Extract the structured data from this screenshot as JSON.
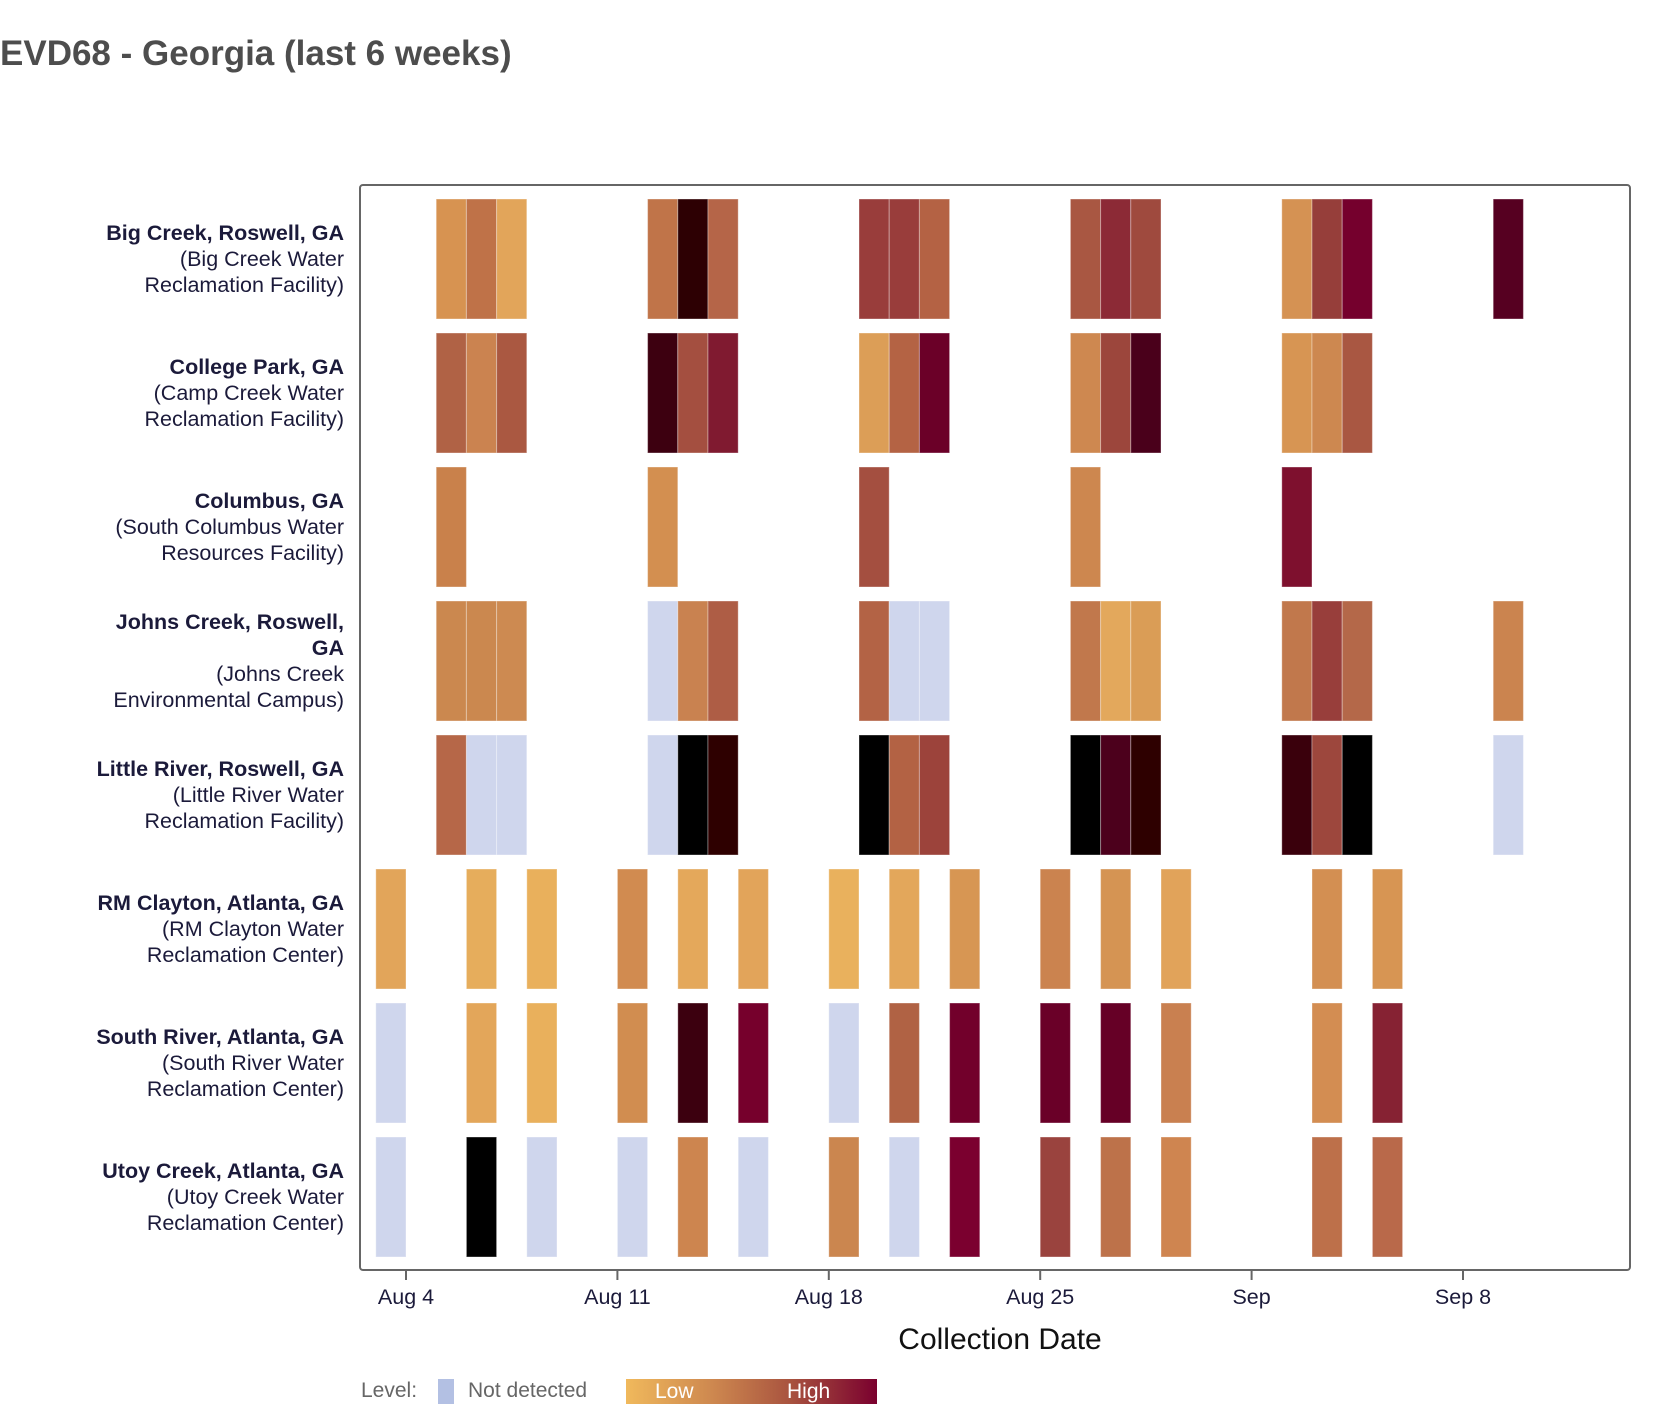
{
  "title": "EVD68 - Georgia (last 6 weeks)",
  "chart_data": {
    "type": "heatmap",
    "title": "EVD68 - Georgia (last 6 weeks)",
    "xlabel": "Collection Date",
    "ylabel": "",
    "xlim": [
      "Aug 2",
      "Sep 13"
    ],
    "x_ticks": [
      {
        "label": "Aug 4",
        "date": "Aug 4"
      },
      {
        "label": "Aug 11",
        "date": "Aug 11"
      },
      {
        "label": "Aug 18",
        "date": "Aug 18"
      },
      {
        "label": "Aug 25",
        "date": "Aug 25"
      },
      {
        "label": "Sep",
        "date": "Sep 1"
      },
      {
        "label": "Sep 8",
        "date": "Sep 8"
      }
    ],
    "legend": {
      "position": "bottom",
      "title": "Level:",
      "not_detected_label": "Not detected",
      "not_detected_color": "#b3c0e3",
      "low_label": "Low",
      "high_label": "High",
      "gradient": [
        "#f0b95c",
        "#7a002e"
      ]
    },
    "not_detected_fill": "#cfd6ed",
    "sites": [
      {
        "name": "Big Creek, Roswell, GA",
        "facility": [
          "(Big Creek Water",
          "Reclamation Facility)"
        ],
        "samples": [
          [
            "Aug 5",
            "#d79351"
          ],
          [
            "Aug 6",
            "#bf7248"
          ],
          [
            "Aug 7",
            "#e2a55a"
          ],
          [
            "Aug 12",
            "#c07449"
          ],
          [
            "Aug 13",
            "#2d0003"
          ],
          [
            "Aug 14",
            "#b56548"
          ],
          [
            "Aug 19",
            "#993d3b"
          ],
          [
            "Aug 20",
            "#993d3b"
          ],
          [
            "Aug 21",
            "#b46244"
          ],
          [
            "Aug 26",
            "#a95742"
          ],
          [
            "Aug 27",
            "#8c2a36"
          ],
          [
            "Aug 28",
            "#9f4a3e"
          ],
          [
            "Sep 2",
            "#d59253"
          ],
          [
            "Sep 3",
            "#963e3a"
          ],
          [
            "Sep 4",
            "#75002d"
          ],
          [
            "Sep 9",
            "#560021"
          ]
        ]
      },
      {
        "name": "College Park, GA",
        "facility": [
          "(Camp Creek Water",
          "Reclamation Facility)"
        ],
        "samples": [
          [
            "Aug 5",
            "#b06245"
          ],
          [
            "Aug 6",
            "#cb8350"
          ],
          [
            "Aug 7",
            "#aa5841"
          ],
          [
            "Aug 12",
            "#3d0010"
          ],
          [
            "Aug 13",
            "#a44f40"
          ],
          [
            "Aug 14",
            "#801a30"
          ],
          [
            "Aug 19",
            "#dc9e57"
          ],
          [
            "Aug 20",
            "#b46344"
          ],
          [
            "Aug 21",
            "#6b0028"
          ],
          [
            "Aug 26",
            "#ce8850"
          ],
          [
            "Aug 27",
            "#9c463c"
          ],
          [
            "Aug 28",
            "#4a001b"
          ],
          [
            "Sep 2",
            "#d79553"
          ],
          [
            "Sep 3",
            "#cd8850"
          ],
          [
            "Sep 4",
            "#a95742"
          ]
        ]
      },
      {
        "name": "Columbus, GA",
        "facility": [
          "(South Columbus Water",
          "Resources Facility)"
        ],
        "samples": [
          [
            "Aug 5",
            "#c9814b"
          ],
          [
            "Aug 12",
            "#d38f50"
          ],
          [
            "Aug 19",
            "#a44f40"
          ],
          [
            "Aug 26",
            "#cd874f"
          ],
          [
            "Sep 2",
            "#7e102e"
          ]
        ]
      },
      {
        "name": "Johns Creek, Roswell, GA",
        "name_lines": [
          "Johns Creek, Roswell,",
          "GA"
        ],
        "facility": [
          "(Johns Creek",
          "Environmental Campus)"
        ],
        "samples": [
          [
            "Aug 5",
            "#cb884f"
          ],
          [
            "Aug 6",
            "#cb884f"
          ],
          [
            "Aug 7",
            "#cd8a51"
          ],
          [
            "Aug 12",
            "ND"
          ],
          [
            "Aug 13",
            "#c98250"
          ],
          [
            "Aug 14",
            "#ae5d45"
          ],
          [
            "Aug 19",
            "#b36345"
          ],
          [
            "Aug 20",
            "ND"
          ],
          [
            "Aug 21",
            "ND"
          ],
          [
            "Aug 26",
            "#c1784c"
          ],
          [
            "Aug 27",
            "#e3a85c"
          ],
          [
            "Aug 28",
            "#da9d56"
          ],
          [
            "Sep 2",
            "#c1784c"
          ],
          [
            "Sep 3",
            "#983e3b"
          ],
          [
            "Sep 4",
            "#b46849"
          ],
          [
            "Sep 9",
            "#cb844f"
          ]
        ]
      },
      {
        "name": "Little River, Roswell, GA",
        "facility": [
          "(Little River Water",
          "Reclamation Facility)"
        ],
        "samples": [
          [
            "Aug 5",
            "#b66748"
          ],
          [
            "Aug 6",
            "ND"
          ],
          [
            "Aug 7",
            "ND"
          ],
          [
            "Aug 12",
            "ND"
          ],
          [
            "Aug 13",
            "#000000"
          ],
          [
            "Aug 14",
            "#2e0000"
          ],
          [
            "Aug 19",
            "#000000"
          ],
          [
            "Aug 20",
            "#b36244"
          ],
          [
            "Aug 21",
            "#9c433b"
          ],
          [
            "Aug 26",
            "#000000"
          ],
          [
            "Aug 27",
            "#4c001c"
          ],
          [
            "Aug 28",
            "#2e0000"
          ],
          [
            "Sep 2",
            "#3a000c"
          ],
          [
            "Sep 3",
            "#9d473d"
          ],
          [
            "Sep 4",
            "#000000"
          ],
          [
            "Sep 9",
            "ND"
          ]
        ]
      },
      {
        "name": "RM Clayton, Atlanta, GA",
        "facility": [
          "(RM Clayton Water",
          "Reclamation Center)"
        ],
        "samples": [
          [
            "Aug 3",
            "#e2a55a"
          ],
          [
            "Aug 6",
            "#e6ad5c"
          ],
          [
            "Aug 8",
            "#e9b05c"
          ],
          [
            "Aug 11",
            "#d18b50"
          ],
          [
            "Aug 13",
            "#e4a85b"
          ],
          [
            "Aug 15",
            "#e2a45a"
          ],
          [
            "Aug 18",
            "#e9b15d"
          ],
          [
            "Aug 20",
            "#e3a75b"
          ],
          [
            "Aug 22",
            "#d79653"
          ],
          [
            "Aug 25",
            "#cb834f"
          ],
          [
            "Aug 27",
            "#d59453"
          ],
          [
            "Aug 29",
            "#e1a35a"
          ],
          [
            "Sep 3",
            "#d38f52"
          ],
          [
            "Sep 5",
            "#d79553"
          ]
        ]
      },
      {
        "name": "South River, Atlanta, GA",
        "facility": [
          "(South River Water",
          "Reclamation Center)"
        ],
        "samples": [
          [
            "Aug 3",
            "ND"
          ],
          [
            "Aug 6",
            "#e3a65a"
          ],
          [
            "Aug 8",
            "#e9b05c"
          ],
          [
            "Aug 11",
            "#d18d50"
          ],
          [
            "Aug 13",
            "#3c000f"
          ],
          [
            "Aug 15",
            "#76002c"
          ],
          [
            "Aug 18",
            "ND"
          ],
          [
            "Aug 20",
            "#b06244"
          ],
          [
            "Aug 22",
            "#72002b"
          ],
          [
            "Aug 25",
            "#6a0028"
          ],
          [
            "Aug 27",
            "#660026"
          ],
          [
            "Aug 29",
            "#c98050"
          ],
          [
            "Sep 3",
            "#d38d52"
          ],
          [
            "Sep 5",
            "#862233"
          ]
        ]
      },
      {
        "name": "Utoy Creek, Atlanta, GA",
        "facility": [
          "(Utoy Creek Water",
          "Reclamation Center)"
        ],
        "samples": [
          [
            "Aug 3",
            "ND"
          ],
          [
            "Aug 6",
            "#000000"
          ],
          [
            "Aug 8",
            "ND"
          ],
          [
            "Aug 11",
            "ND"
          ],
          [
            "Aug 13",
            "#cd854f"
          ],
          [
            "Aug 15",
            "ND"
          ],
          [
            "Aug 18",
            "#cb864f"
          ],
          [
            "Aug 20",
            "ND"
          ],
          [
            "Aug 22",
            "#7b002f"
          ],
          [
            "Aug 25",
            "#9a433e"
          ],
          [
            "Aug 27",
            "#bd724a"
          ],
          [
            "Aug 29",
            "#cf8550"
          ],
          [
            "Sep 3",
            "#bd704a"
          ],
          [
            "Sep 5",
            "#b9694a"
          ]
        ]
      }
    ]
  }
}
